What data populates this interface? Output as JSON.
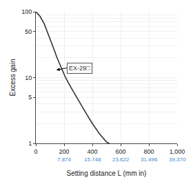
{
  "chart_data": {
    "type": "line",
    "xlabel": "Setting distance L (mm in)",
    "ylabel": "Excess gain",
    "x": [
      0,
      30,
      60,
      90,
      120,
      150,
      180,
      210,
      250,
      300,
      350,
      400,
      450,
      500,
      520
    ],
    "series": [
      {
        "values": [
          100,
          85,
          65,
          45,
          30,
          20,
          14,
          10,
          7,
          4.5,
          3.0,
          2.0,
          1.4,
          1.05,
          1.0
        ],
        "color": "#333333"
      }
    ],
    "xlim": [
      0,
      1000
    ],
    "xticks": [
      0,
      200,
      400,
      600,
      800,
      {
        "value": 1000,
        "label": "1,000"
      }
    ],
    "ylim": [
      1,
      100
    ],
    "yticks": [
      1,
      5,
      10,
      50,
      100
    ],
    "log": "y",
    "grid": true,
    "annotations": [
      {
        "text": "7.874",
        "x": 200,
        "color": "#4488cc"
      },
      {
        "text": "15.748",
        "x": 400,
        "color": "#4488cc"
      },
      {
        "text": "23.622",
        "x": 600,
        "color": "#4488cc"
      },
      {
        "text": "31.496",
        "x": 800,
        "color": "#4488cc"
      },
      {
        "text": "39.370",
        "x": 1000,
        "color": "#4488cc"
      },
      {
        "text": "EX-29□",
        "x": 220,
        "y": 14,
        "arrow_x": 145,
        "arrow_y": 13,
        "color": "#333333"
      }
    ]
  }
}
